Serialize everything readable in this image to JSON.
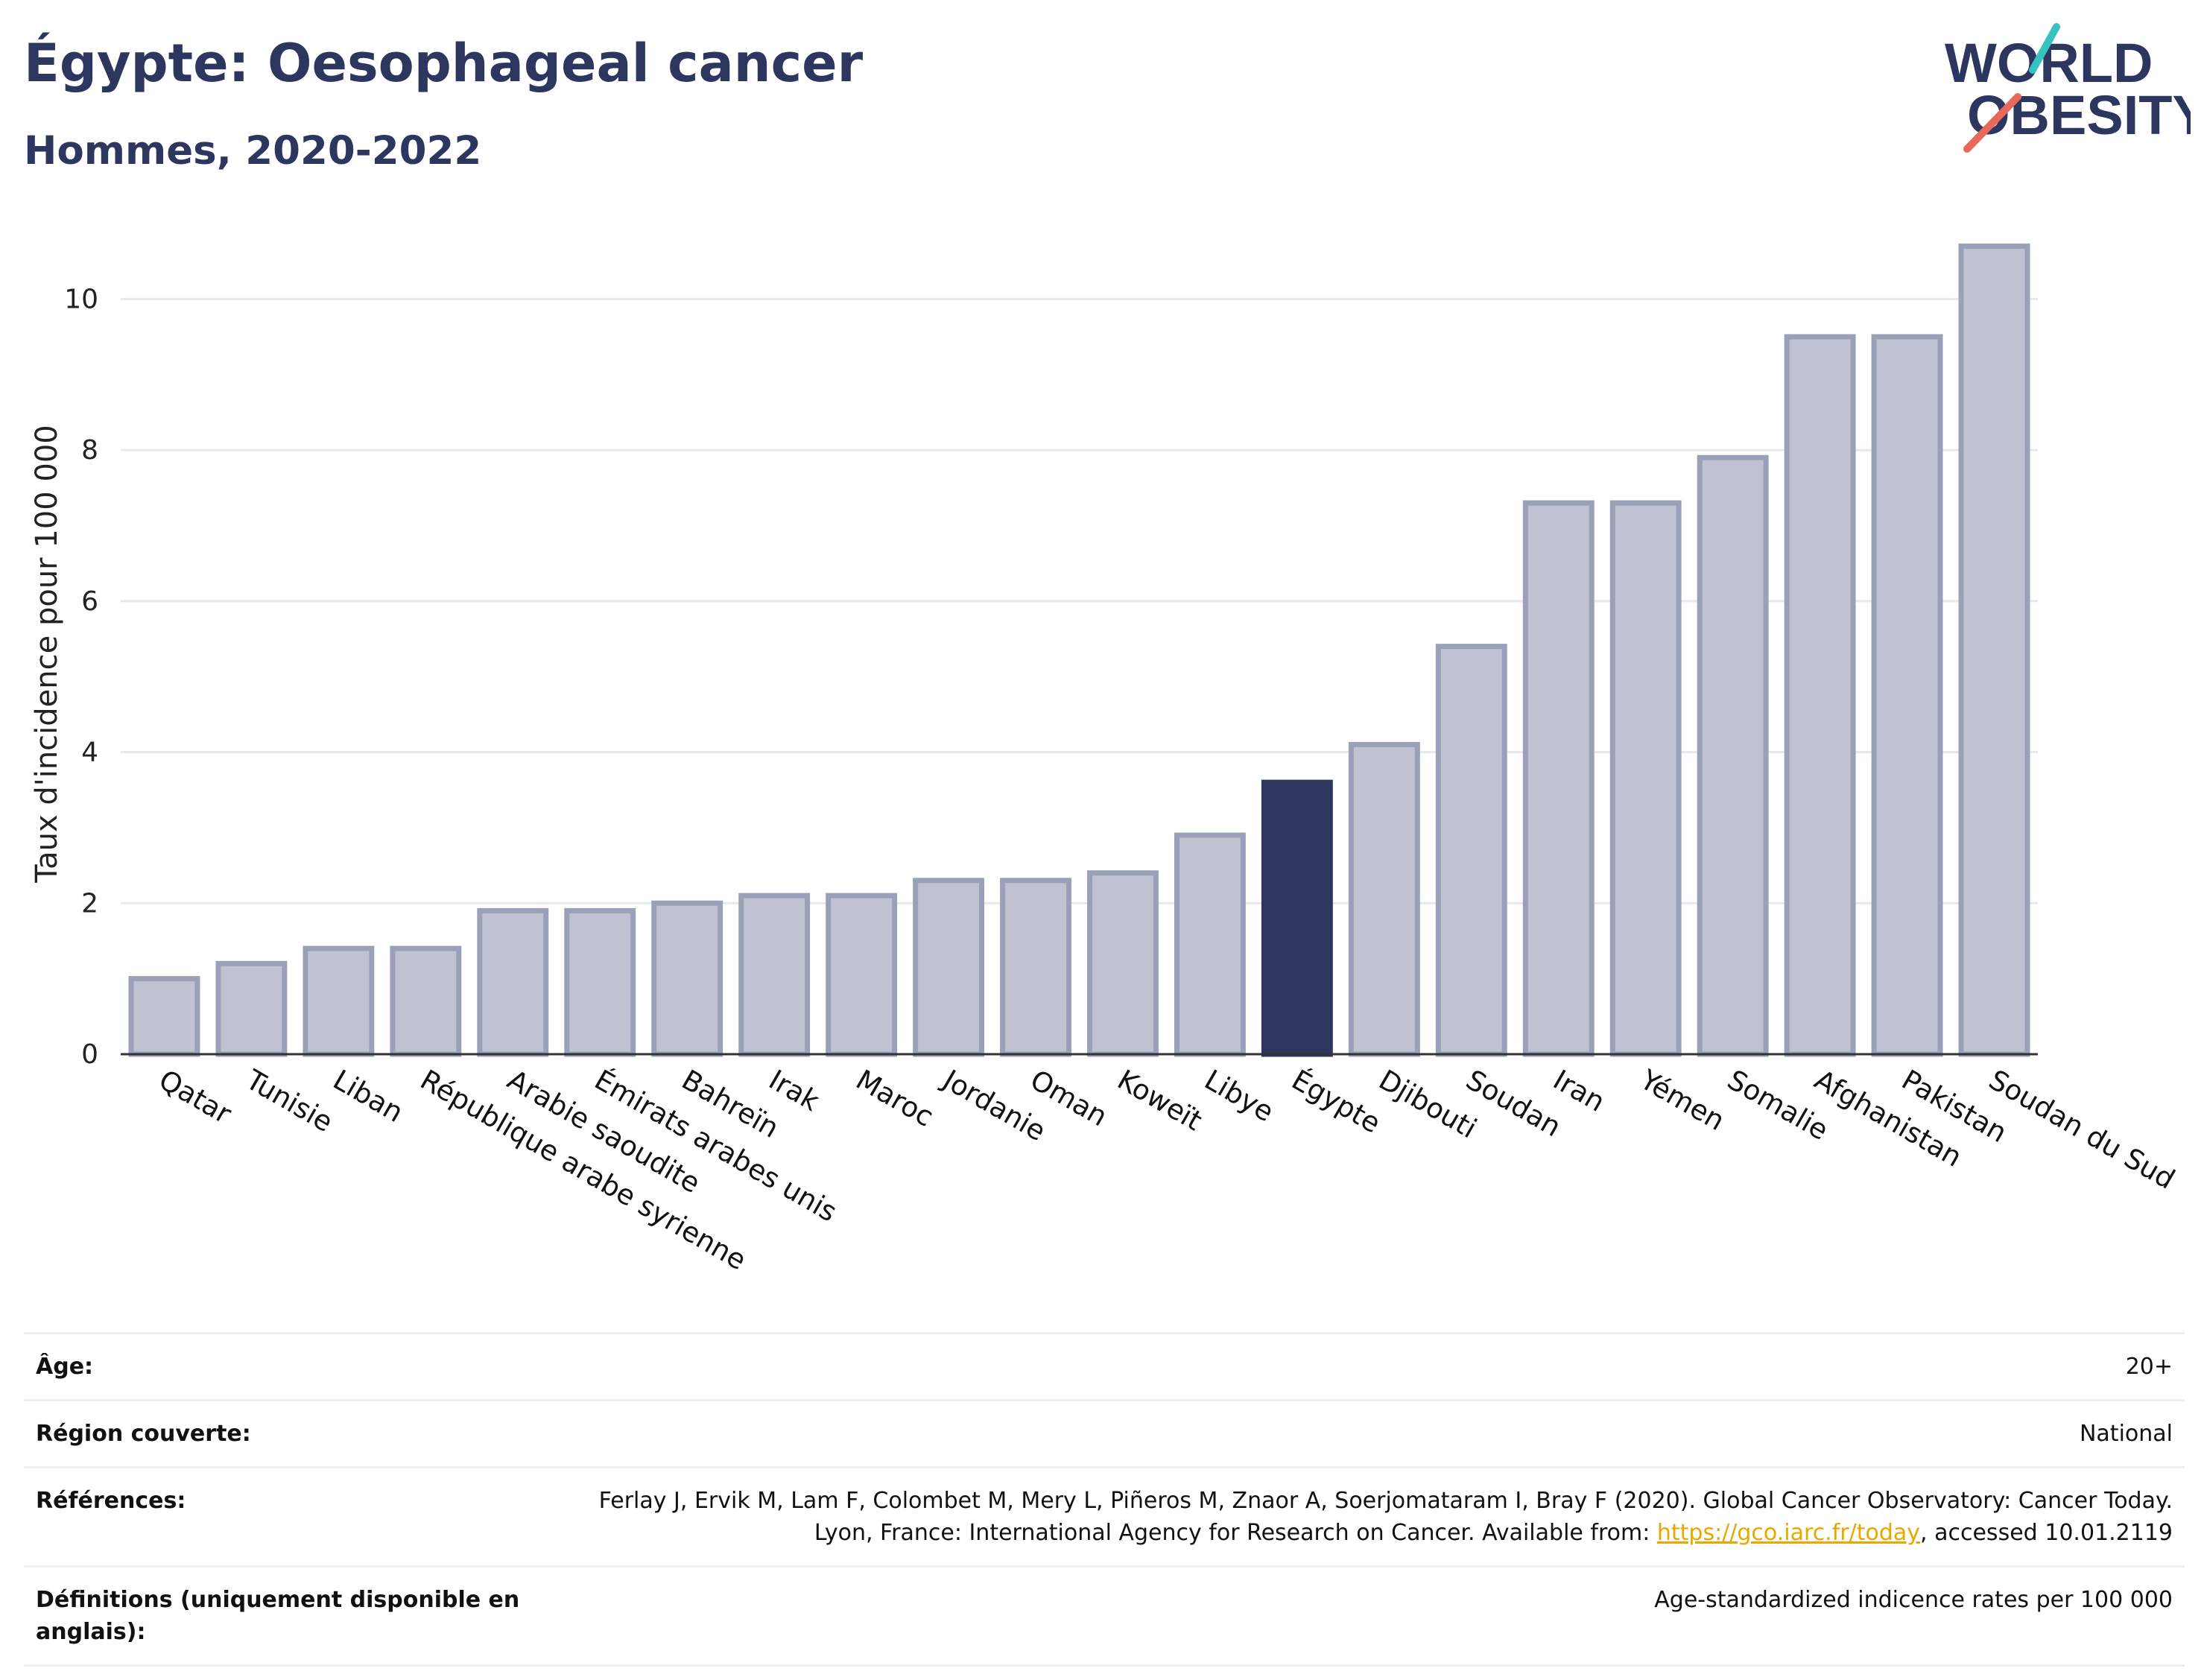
{
  "header": {
    "title": "Égypte: Oesophageal cancer",
    "subtitle": "Hommes, 2020-2022"
  },
  "logo": {
    "line1": "WORLD",
    "line2": "OBESITY"
  },
  "colors": {
    "highlight": "#2c365e",
    "bar_fill": "#bfc3d1",
    "bar_stroke": "#9aa0b8",
    "grid": "#e6e8ee",
    "text": "#2c365e",
    "logo_teal": "#36c2be",
    "logo_coral": "#e8685a"
  },
  "chart_data": {
    "type": "bar",
    "ylabel": "Taux d'incidence pour 100 000",
    "ylim": [
      0,
      11
    ],
    "yticks": [
      0,
      2,
      4,
      6,
      8,
      10
    ],
    "grid": true,
    "highlight": "Égypte",
    "categories": [
      "Qatar",
      "Tunisie",
      "Liban",
      "République arabe syrienne",
      "Arabie saoudite",
      "Émirats arabes unis",
      "Bahreïn",
      "Irak",
      "Maroc",
      "Jordanie",
      "Oman",
      "Koweït",
      "Libye",
      "Égypte",
      "Djibouti",
      "Soudan",
      "Iran",
      "Yémen",
      "Somalie",
      "Afghanistan",
      "Pakistan",
      "Soudan du Sud"
    ],
    "values": [
      1.0,
      1.2,
      1.4,
      1.4,
      1.9,
      1.9,
      2.0,
      2.1,
      2.1,
      2.3,
      2.3,
      2.4,
      2.9,
      3.6,
      4.1,
      5.4,
      7.3,
      7.3,
      7.9,
      9.5,
      9.5,
      10.7
    ]
  },
  "meta": {
    "age_label": "Âge:",
    "age_value": "20+",
    "region_label": "Région couverte:",
    "region_value": "National",
    "refs_label": "Références:",
    "refs_text_before": "Ferlay J, Ervik M, Lam F, Colombet M, Mery L, Piñeros M, Znaor A, Soerjomataram I, Bray F (2020). Global Cancer Observatory: Cancer Today. Lyon, France: International Agency for Research on Cancer. Available from: ",
    "refs_link": "https://gco.iarc.fr/today",
    "refs_text_after": ", accessed 10.01.2119",
    "defs_label": "Définitions (uniquement disponible en anglais):",
    "defs_value": "Age-standardized indicence rates per 100 000"
  }
}
